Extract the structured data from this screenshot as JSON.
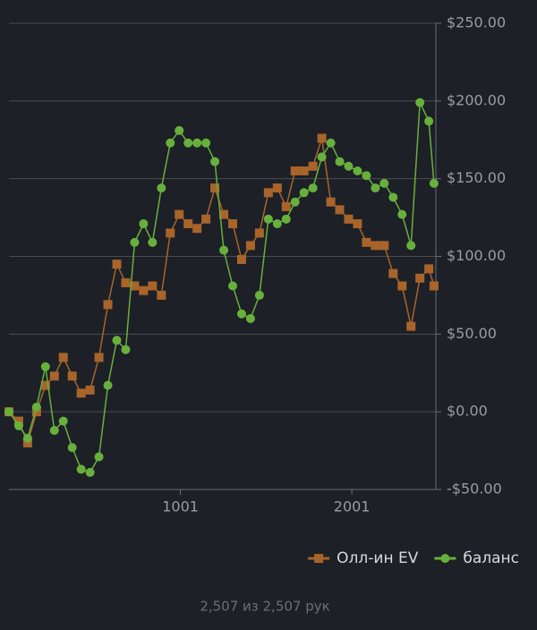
{
  "chart_data": {
    "type": "line",
    "x": [
      1,
      58,
      110,
      162,
      214,
      266,
      318,
      370,
      422,
      474,
      526,
      578,
      630,
      682,
      734,
      786,
      838,
      890,
      942,
      994,
      1046,
      1098,
      1150,
      1202,
      1254,
      1306,
      1358,
      1410,
      1462,
      1514,
      1566,
      1618,
      1670,
      1722,
      1774,
      1826,
      1878,
      1930,
      1982,
      2034,
      2086,
      2138,
      2190,
      2242,
      2294,
      2346,
      2398,
      2450,
      2480
    ],
    "series": [
      {
        "name": "Олл-ин EV",
        "color": "#a8642a",
        "marker": "square",
        "values": [
          0,
          -6,
          -20,
          0,
          17,
          23,
          35,
          23,
          12,
          14,
          35,
          69,
          95,
          83,
          81,
          78,
          81,
          75,
          115,
          127,
          121,
          118,
          124,
          144,
          127,
          121,
          98,
          107,
          115,
          141,
          144,
          132,
          155,
          155,
          158,
          176,
          135,
          130,
          124,
          121,
          109,
          107,
          107,
          89,
          81,
          55,
          86,
          92,
          81
        ]
      },
      {
        "name": "баланс",
        "color": "#68b03c",
        "marker": "circle",
        "values": [
          0,
          -9,
          -17,
          3,
          29,
          -12,
          -6,
          -23,
          -37,
          -39,
          -29,
          17,
          46,
          40,
          109,
          121,
          109,
          144,
          173,
          181,
          173,
          173,
          173,
          161,
          104,
          81,
          63,
          60,
          75,
          124,
          121,
          124,
          135,
          141,
          144,
          164,
          173,
          161,
          158,
          155,
          152,
          144,
          147,
          138,
          127,
          107,
          199,
          187,
          147
        ]
      }
    ],
    "xlim": [
      1,
      2491
    ],
    "xticks": [
      1001,
      2001
    ],
    "ylim": [
      -50,
      250
    ],
    "yticks": [
      {
        "value": -50,
        "label": "-$50.00"
      },
      {
        "value": 0,
        "label": "$0.00"
      },
      {
        "value": 50,
        "label": "$50.00"
      },
      {
        "value": 100,
        "label": "$100.00"
      },
      {
        "value": 150,
        "label": "$150.00"
      },
      {
        "value": 200,
        "label": "$200.00"
      },
      {
        "value": 250,
        "label": "$250.00"
      }
    ],
    "grid": true,
    "legend": "bottom-right",
    "footer": "2,507 из 2,507 рук"
  }
}
